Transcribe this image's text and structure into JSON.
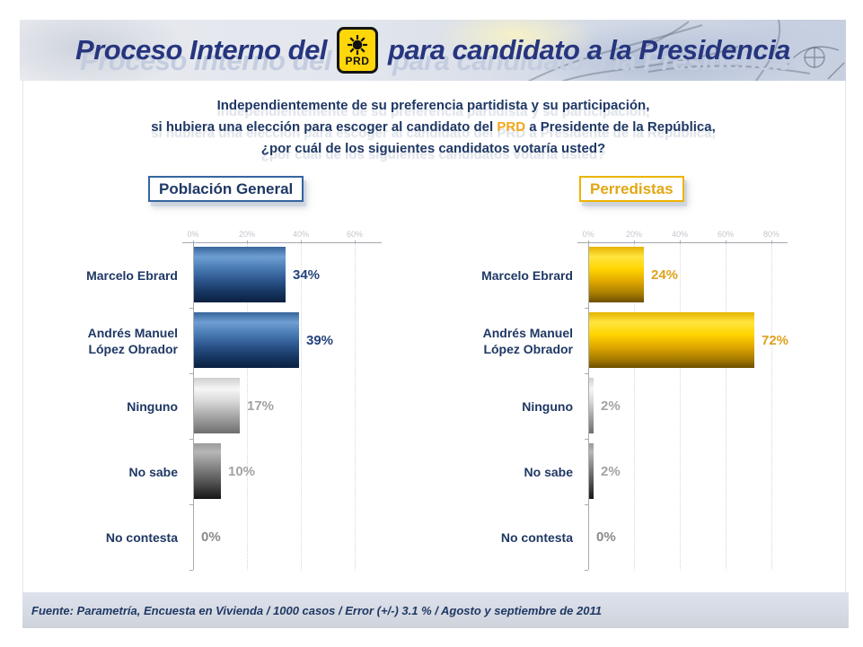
{
  "header": {
    "title_prefix": "Proceso Interno del",
    "title_suffix": "para candidato a la Presidencia",
    "logo_text": "PRD"
  },
  "question": {
    "line1": "Independientemente de su preferencia partidista y su participación,",
    "line2_before": "si hubiera una elección para escoger al candidato del",
    "line2_highlight": "PRD",
    "line2_after": "a Presidente de la República,",
    "line3": "¿por cuál de los siguientes candidatos votaría usted?"
  },
  "chart_data": [
    {
      "type": "bar",
      "orientation": "horizontal",
      "group_label": "Población General",
      "accent_color": "#3465A0",
      "categories": [
        "Marcelo Ebrard",
        "Andrés Manuel López Obrador",
        "Ninguno",
        "No sabe",
        "No contesta"
      ],
      "values": [
        34,
        39,
        17,
        10,
        0
      ],
      "value_labels": [
        "34%",
        "39%",
        "17%",
        "10%",
        "0%"
      ],
      "bar_styles": [
        "blue",
        "blue",
        "silver",
        "darkgrey",
        "none"
      ],
      "value_colors": [
        "#24437c",
        "#24437c",
        "#a3a3a3",
        "#a3a3a3",
        "#8a8a8a"
      ],
      "axis_ticks_pct": [
        0,
        20,
        40,
        60
      ],
      "xmax_pct": 70,
      "grid": "dotted-vertical",
      "xlabel": "",
      "ylabel": ""
    },
    {
      "type": "bar",
      "orientation": "horizontal",
      "group_label": "Perredistas",
      "accent_color": "#EDB400",
      "categories": [
        "Marcelo Ebrard",
        "Andrés Manuel López Obrador",
        "Ninguno",
        "No sabe",
        "No contesta"
      ],
      "values": [
        24,
        72,
        2,
        2,
        0
      ],
      "value_labels": [
        "24%",
        "72%",
        "2%",
        "2%",
        "0%"
      ],
      "bar_styles": [
        "yellow",
        "yellow",
        "silver",
        "darkgrey",
        "none"
      ],
      "value_colors": [
        "#dfa21f",
        "#dfa21f",
        "#a3a3a3",
        "#a3a3a3",
        "#8a8a8a"
      ],
      "axis_ticks_pct": [
        0,
        20,
        40,
        60,
        80
      ],
      "xmax_pct": 87,
      "grid": "dotted-vertical",
      "xlabel": "",
      "ylabel": ""
    }
  ],
  "footer": {
    "source": "Fuente: Parametría, Encuesta en Vivienda / 1000 casos / Error (+/-) 3.1 % / Agosto y septiembre de 2011"
  }
}
